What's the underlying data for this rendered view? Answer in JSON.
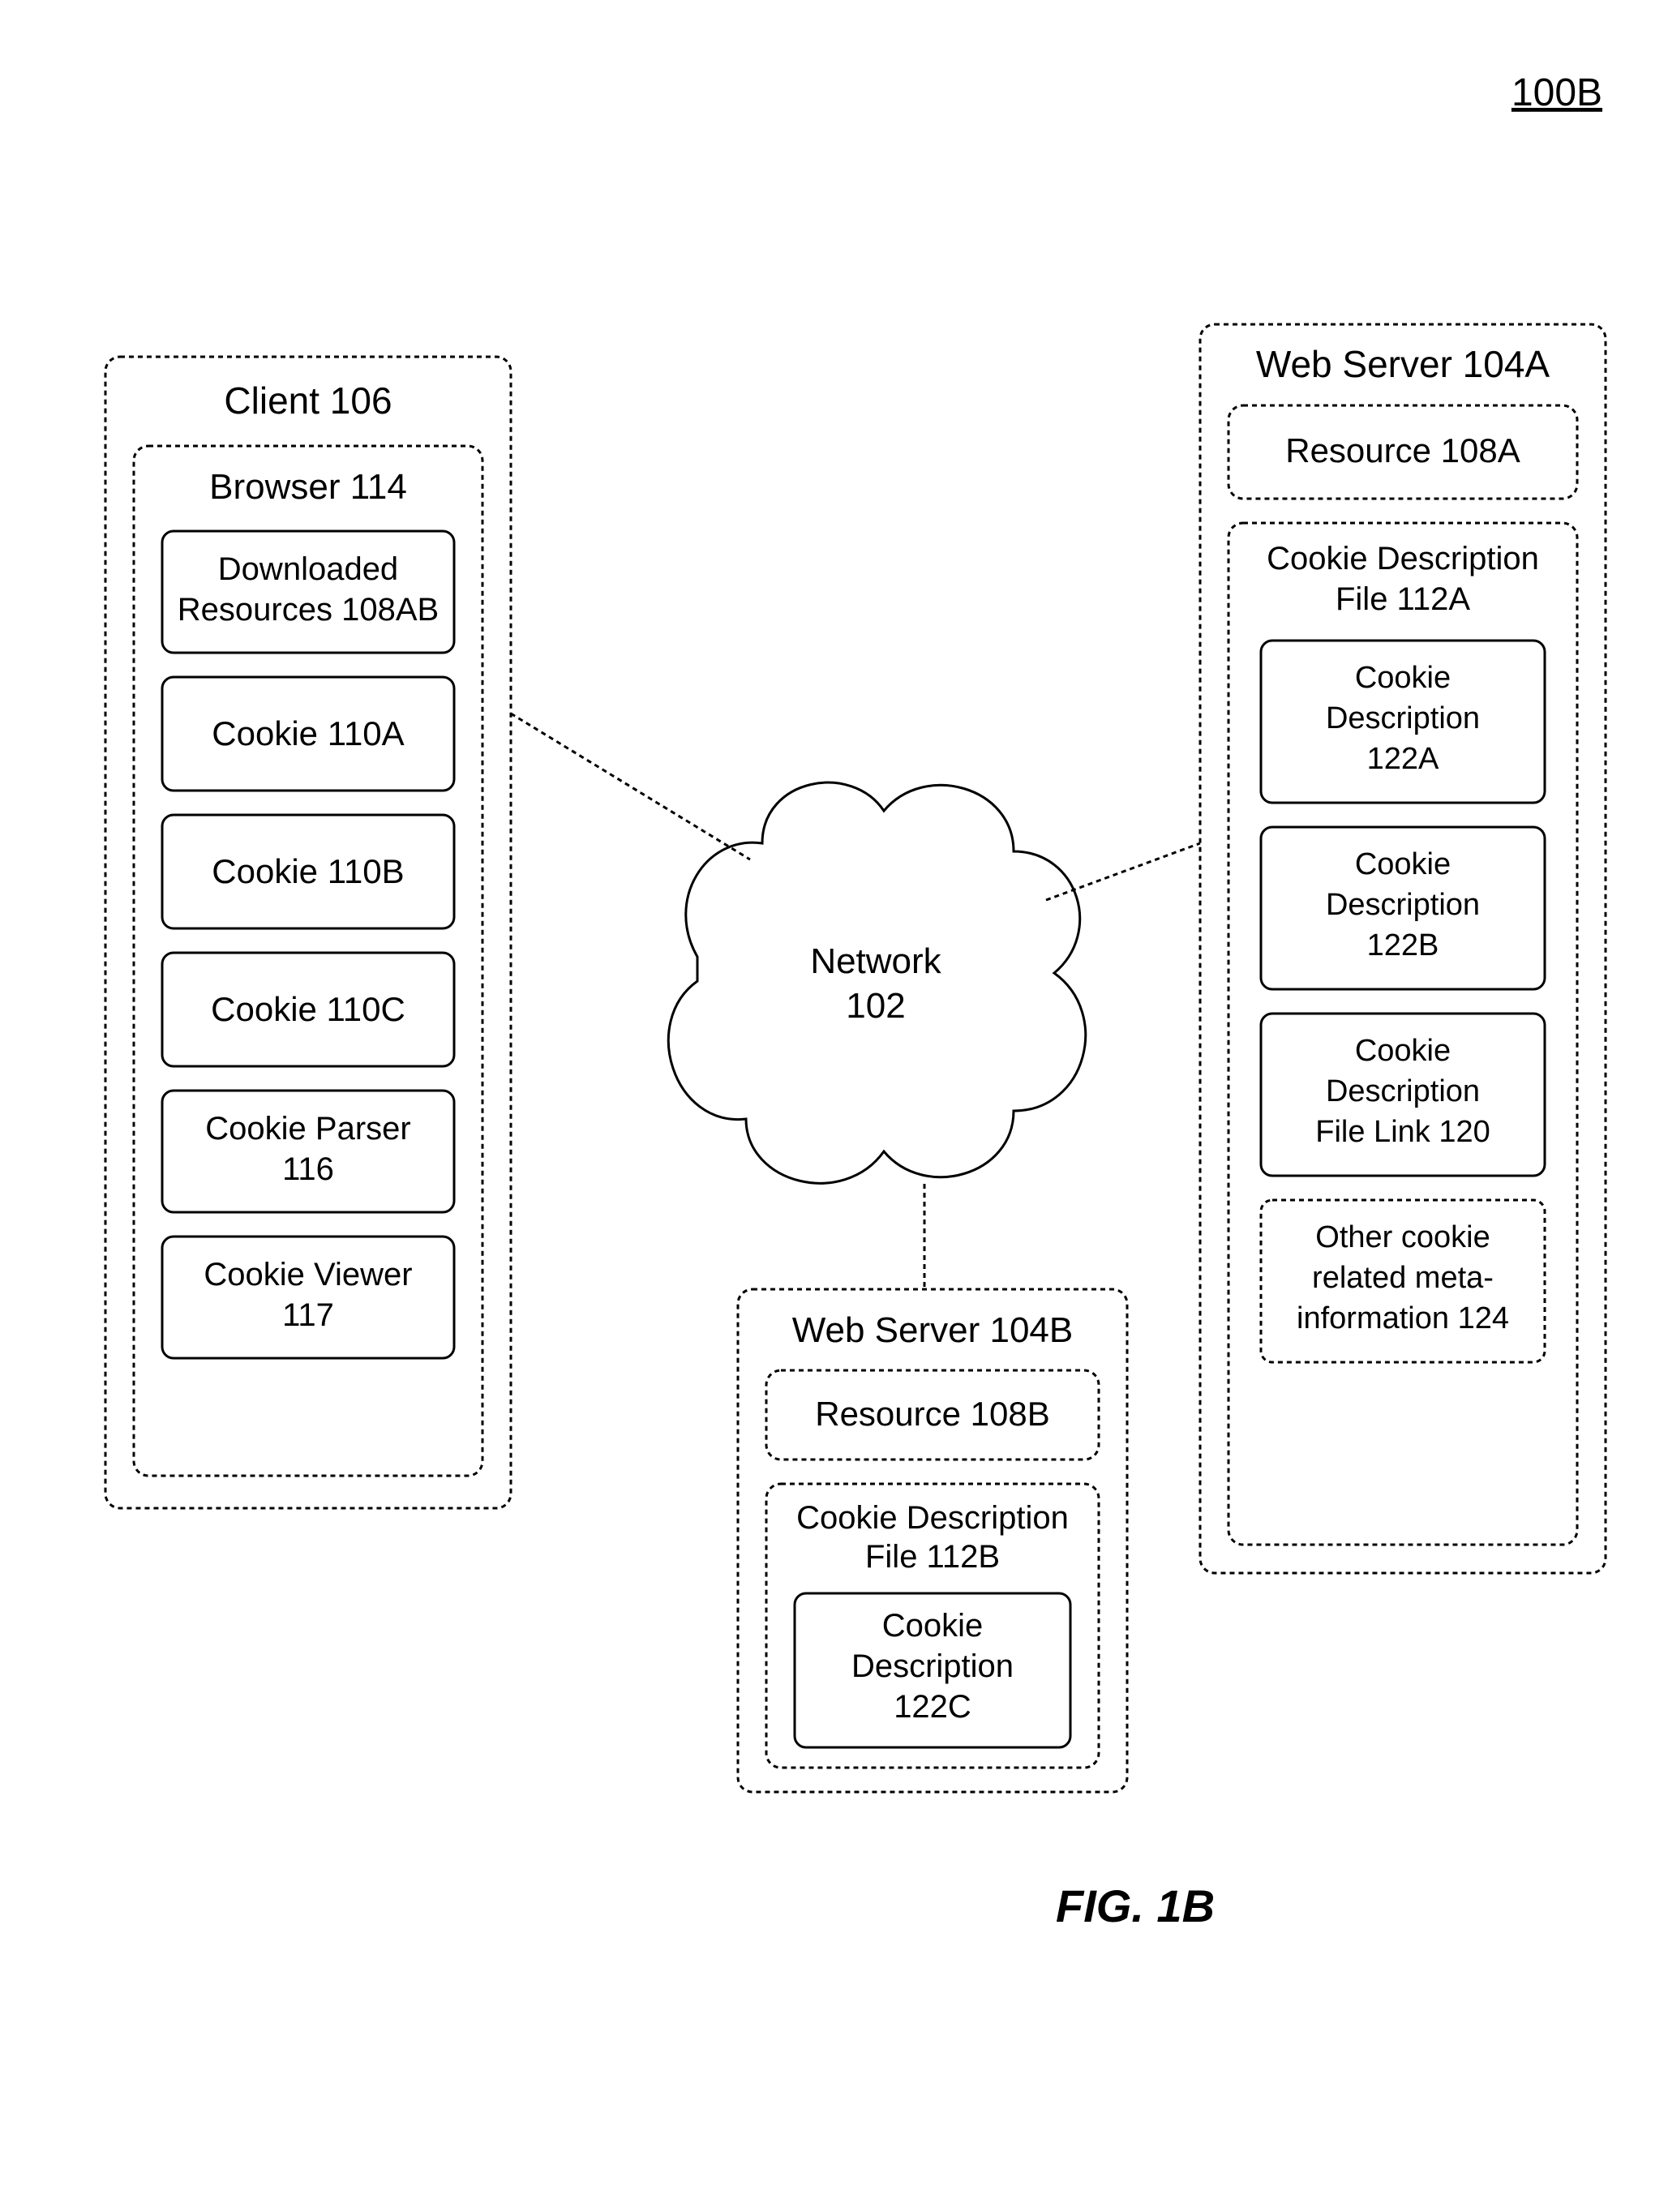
{
  "figure_id": "100B",
  "figure_caption": "FIG. 1B",
  "network": {
    "label_line1": "Network",
    "label_line2": "102"
  },
  "client": {
    "title": "Client 106",
    "browser": {
      "title": "Browser 114",
      "items": [
        {
          "line1": "Downloaded",
          "line2": "Resources 108AB"
        },
        {
          "line1": "Cookie 110A",
          "line2": ""
        },
        {
          "line1": "Cookie 110B",
          "line2": ""
        },
        {
          "line1": "Cookie 110C",
          "line2": ""
        },
        {
          "line1": "Cookie Parser",
          "line2": "116"
        },
        {
          "line1": "Cookie Viewer",
          "line2": "117"
        }
      ]
    }
  },
  "server_a": {
    "title": "Web Server 104A",
    "resource": "Resource 108A",
    "cdf": {
      "title_line1": "Cookie Description",
      "title_line2": "File 112A",
      "items": [
        {
          "l1": "Cookie",
          "l2": "Description",
          "l3": "122A"
        },
        {
          "l1": "Cookie",
          "l2": "Description",
          "l3": "122B"
        },
        {
          "l1": "Cookie",
          "l2": "Description",
          "l3": "File Link 120"
        },
        {
          "l1": "Other cookie",
          "l2": "related meta-",
          "l3": "information 124"
        }
      ]
    }
  },
  "server_b": {
    "title": "Web Server 104B",
    "resource": "Resource 108B",
    "cdf": {
      "title_line1": "Cookie Description",
      "title_line2": "File 112B",
      "item": {
        "l1": "Cookie",
        "l2": "Description",
        "l3": "122C"
      }
    }
  },
  "style": {
    "stroke": "#000000",
    "dash": "6,5",
    "stroke_width": 3,
    "corner_radius": 18,
    "font_size_title": 46,
    "font_size_box": 42,
    "font_size_fig": 56,
    "font_size_id": 48
  }
}
